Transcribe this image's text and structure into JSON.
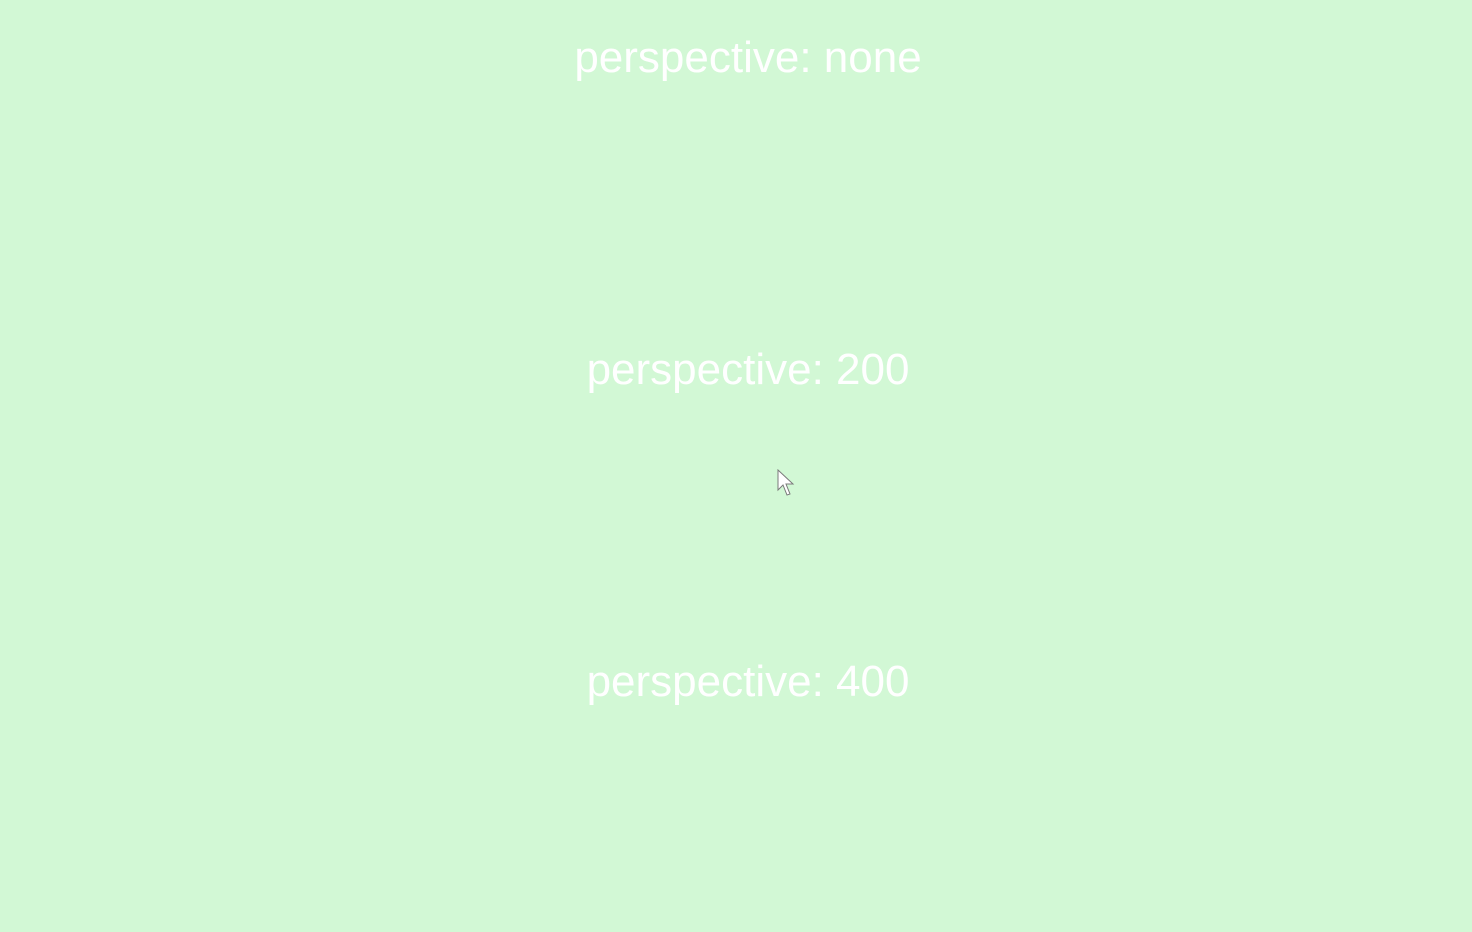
{
  "background_color": "#d2f8d5",
  "text_color": "#ffffff",
  "labels": {
    "none": "perspective: none",
    "p200": "perspective: 200",
    "p400": "perspective: 400"
  },
  "cursor_icon": "arrow-cursor-icon"
}
